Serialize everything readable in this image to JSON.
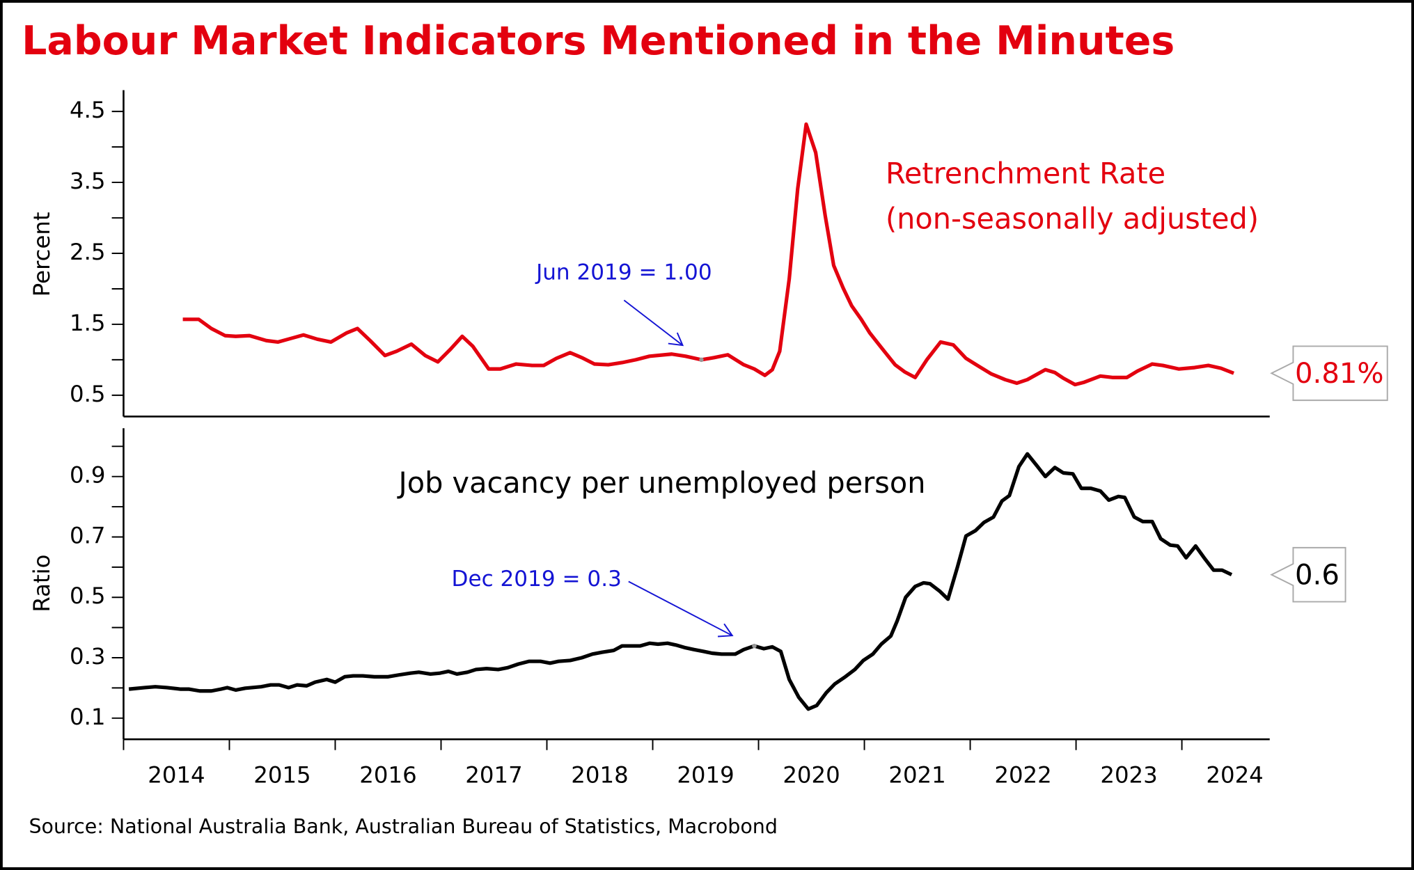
{
  "title": "Labour Market Indicators Mentioned in the Minutes",
  "source": "Source: National Australia Bank, Australian Bureau of Statistics, Macrobond",
  "chart_data": [
    {
      "type": "line",
      "ylabel": "Percent",
      "xlim": [
        2014,
        2024.83
      ],
      "ylim": [
        0.2,
        4.8
      ],
      "yticks": [
        0.5,
        1.5,
        2.5,
        3.5,
        4.5
      ],
      "yminor_ticks": [
        1,
        2,
        3,
        4
      ],
      "annotation": "Jun 2019 = 1.00",
      "series": [
        {
          "name": "Retrenchment Rate",
          "note": "(non-seasonally adjusted)",
          "color": "#e3000f",
          "end_label": "0.81%",
          "x": [
            2014.56,
            2014.71,
            2014.83,
            2014.96,
            2015.06,
            2015.19,
            2015.35,
            2015.46,
            2015.58,
            2015.7,
            2015.83,
            2015.96,
            2016.11,
            2016.21,
            2016.33,
            2016.47,
            2016.58,
            2016.72,
            2016.85,
            2016.97,
            2017.09,
            2017.2,
            2017.3,
            2017.45,
            2017.56,
            2017.71,
            2017.86,
            2017.97,
            2018.09,
            2018.22,
            2018.33,
            2018.45,
            2018.58,
            2018.71,
            2018.84,
            2018.97,
            2019.18,
            2019.31,
            2019.46,
            2019.58,
            2019.71,
            2019.86,
            2019.96,
            2020.06,
            2020.13,
            2020.2,
            2020.29,
            2020.37,
            2020.45,
            2020.54,
            2020.63,
            2020.71,
            2020.8,
            2020.88,
            2020.97,
            2021.05,
            2021.14,
            2021.22,
            2021.29,
            2021.38,
            2021.48,
            2021.59,
            2021.72,
            2021.84,
            2021.96,
            2022.1,
            2022.2,
            2022.33,
            2022.44,
            2022.54,
            2022.71,
            2022.8,
            2022.88,
            2022.99,
            2023.07,
            2023.23,
            2023.35,
            2023.48,
            2023.58,
            2023.72,
            2023.82,
            2023.97,
            2024.12,
            2024.25,
            2024.37,
            2024.49
          ],
          "values": [
            1.57,
            1.57,
            1.44,
            1.34,
            1.33,
            1.34,
            1.27,
            1.25,
            1.3,
            1.35,
            1.29,
            1.25,
            1.38,
            1.44,
            1.27,
            1.06,
            1.12,
            1.22,
            1.06,
            0.97,
            1.15,
            1.33,
            1.19,
            0.87,
            0.87,
            0.94,
            0.92,
            0.92,
            1.02,
            1.1,
            1.03,
            0.94,
            0.93,
            0.96,
            1.0,
            1.05,
            1.08,
            1.05,
            1.0,
            1.03,
            1.07,
            0.93,
            0.87,
            0.78,
            0.86,
            1.12,
            2.14,
            3.41,
            4.32,
            3.92,
            3.03,
            2.33,
            2.01,
            1.76,
            1.57,
            1.38,
            1.21,
            1.06,
            0.93,
            0.83,
            0.75,
            1.0,
            1.25,
            1.21,
            1.02,
            0.89,
            0.8,
            0.72,
            0.67,
            0.72,
            0.86,
            0.82,
            0.74,
            0.65,
            0.68,
            0.77,
            0.75,
            0.75,
            0.84,
            0.94,
            0.92,
            0.87,
            0.89,
            0.92,
            0.88,
            0.81
          ]
        }
      ]
    },
    {
      "type": "line",
      "ylabel": "Ratio",
      "xlim": [
        2014,
        2024.83
      ],
      "ylim": [
        0.03,
        1.06
      ],
      "yticks": [
        0.1,
        0.3,
        0.5,
        0.7,
        0.9
      ],
      "yminor_ticks": [
        0.2,
        0.4,
        0.6,
        0.8,
        1.0
      ],
      "xticks": [
        2014,
        2015,
        2016,
        2017,
        2018,
        2019,
        2020,
        2021,
        2022,
        2023,
        2024
      ],
      "annotation": "Dec 2019 = 0.3",
      "series": [
        {
          "name": "Job vacancy per unemployed person",
          "color": "#000000",
          "end_label": "0.6",
          "x": [
            2014.05,
            2014.2,
            2014.3,
            2014.41,
            2014.54,
            2014.62,
            2014.72,
            2014.83,
            2014.92,
            2014.98,
            2015.06,
            2015.15,
            2015.3,
            2015.39,
            2015.47,
            2015.56,
            2015.64,
            2015.73,
            2015.81,
            2015.92,
            2016.0,
            2016.09,
            2016.17,
            2016.26,
            2016.37,
            2016.5,
            2016.6,
            2016.71,
            2016.79,
            2016.9,
            2016.99,
            2017.07,
            2017.15,
            2017.25,
            2017.33,
            2017.43,
            2017.54,
            2017.63,
            2017.73,
            2017.83,
            2017.94,
            2018.03,
            2018.11,
            2018.22,
            2018.33,
            2018.43,
            2018.52,
            2018.63,
            2018.71,
            2018.8,
            2018.88,
            2018.97,
            2019.05,
            2019.14,
            2019.22,
            2019.31,
            2019.39,
            2019.48,
            2019.56,
            2019.65,
            2019.78,
            2019.86,
            2019.96,
            2020.05,
            2020.13,
            2020.21,
            2020.29,
            2020.38,
            2020.47,
            2020.55,
            2020.64,
            2020.72,
            2020.82,
            2020.91,
            2020.99,
            2021.08,
            2021.16,
            2021.25,
            2021.31,
            2021.39,
            2021.48,
            2021.56,
            2021.62,
            2021.71,
            2021.79,
            2021.88,
            2021.96,
            2022.05,
            2022.13,
            2022.22,
            2022.3,
            2022.37,
            2022.46,
            2022.54,
            2022.63,
            2022.71,
            2022.8,
            2022.88,
            2022.97,
            2023.05,
            2023.14,
            2023.23,
            2023.31,
            2023.4,
            2023.46,
            2023.55,
            2023.63,
            2023.72,
            2023.8,
            2023.89,
            2023.96,
            2024.04,
            2024.13,
            2024.21,
            2024.3,
            2024.38,
            2024.47
          ],
          "values": [
            0.196,
            0.201,
            0.204,
            0.201,
            0.196,
            0.196,
            0.19,
            0.19,
            0.196,
            0.201,
            0.193,
            0.199,
            0.204,
            0.21,
            0.21,
            0.201,
            0.21,
            0.207,
            0.219,
            0.228,
            0.219,
            0.237,
            0.24,
            0.24,
            0.237,
            0.237,
            0.243,
            0.249,
            0.252,
            0.246,
            0.249,
            0.255,
            0.246,
            0.252,
            0.261,
            0.264,
            0.261,
            0.267,
            0.279,
            0.288,
            0.288,
            0.282,
            0.288,
            0.291,
            0.3,
            0.312,
            0.318,
            0.324,
            0.339,
            0.339,
            0.339,
            0.348,
            0.345,
            0.348,
            0.342,
            0.333,
            0.327,
            0.321,
            0.315,
            0.312,
            0.312,
            0.327,
            0.339,
            0.33,
            0.336,
            0.321,
            0.228,
            0.169,
            0.13,
            0.142,
            0.184,
            0.213,
            0.237,
            0.261,
            0.291,
            0.312,
            0.345,
            0.372,
            0.422,
            0.5,
            0.536,
            0.548,
            0.545,
            0.521,
            0.494,
            0.601,
            0.703,
            0.721,
            0.748,
            0.766,
            0.819,
            0.837,
            0.933,
            0.975,
            0.936,
            0.9,
            0.93,
            0.912,
            0.909,
            0.861,
            0.861,
            0.852,
            0.822,
            0.834,
            0.831,
            0.766,
            0.751,
            0.751,
            0.694,
            0.673,
            0.67,
            0.631,
            0.67,
            0.631,
            0.59,
            0.59,
            0.575
          ]
        }
      ]
    }
  ]
}
